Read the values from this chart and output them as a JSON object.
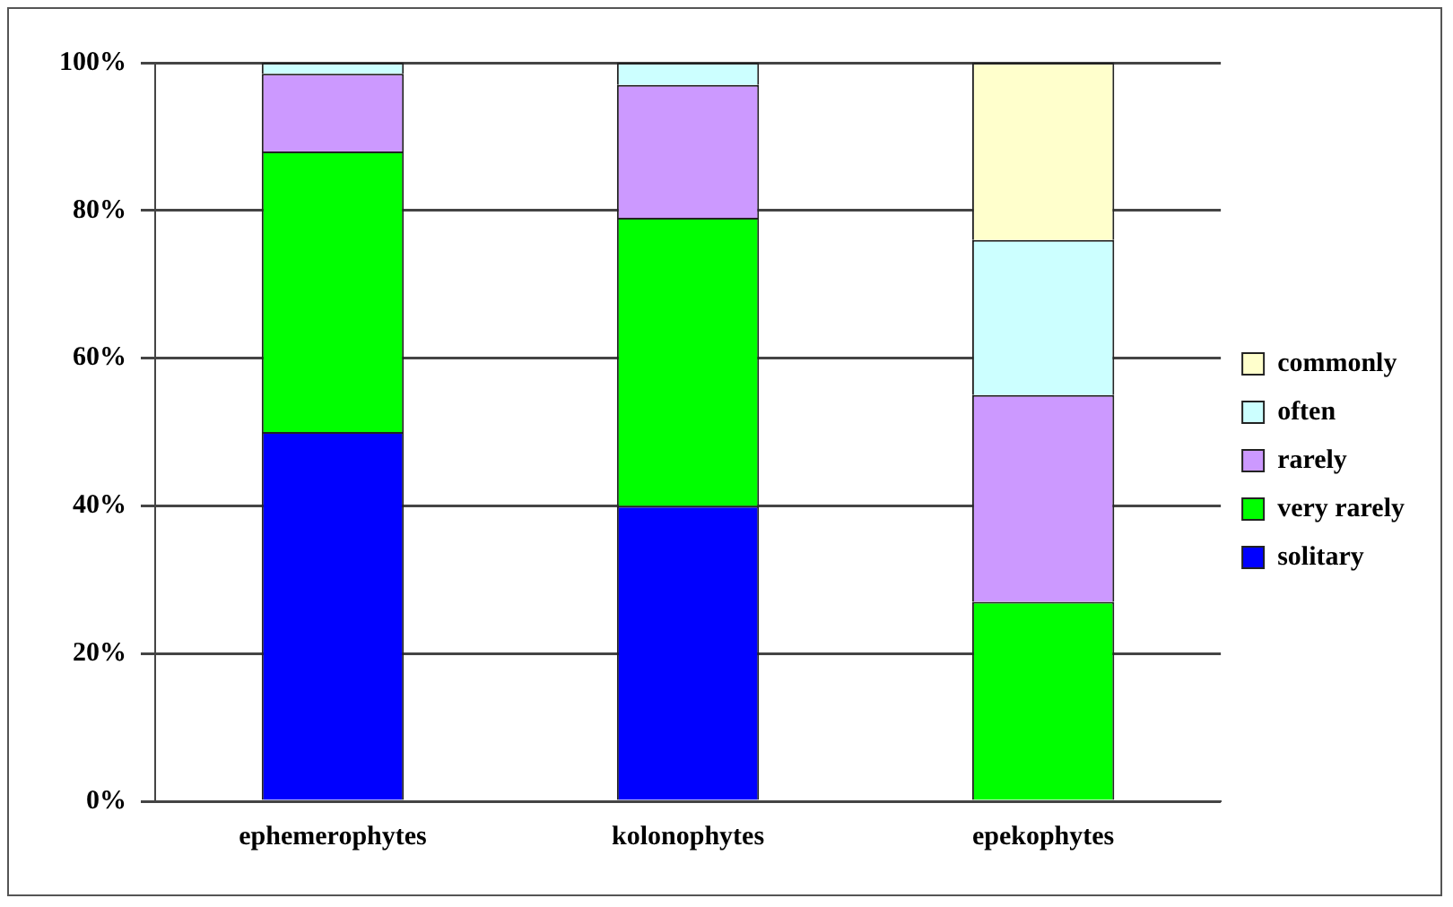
{
  "chart_data": {
    "type": "bar",
    "stacked": true,
    "categories": [
      "ephemerophytes",
      "kolonophytes",
      "epekophytes"
    ],
    "series": [
      {
        "name": "solitary",
        "color": "#0000ff",
        "values": [
          50,
          40,
          0
        ]
      },
      {
        "name": "very rarely",
        "color": "#00ff00",
        "values": [
          38,
          39,
          27
        ]
      },
      {
        "name": "rarely",
        "color": "#cc99ff",
        "values": [
          10.5,
          18,
          28
        ]
      },
      {
        "name": "often",
        "color": "#ccffff",
        "values": [
          1.5,
          3,
          21
        ]
      },
      {
        "name": "commonly",
        "color": "#ffffcc",
        "values": [
          0,
          0,
          24
        ]
      }
    ],
    "ylim": [
      0,
      100
    ],
    "yticks": [
      {
        "value": 0,
        "label": "0%"
      },
      {
        "value": 20,
        "label": "20%"
      },
      {
        "value": 40,
        "label": "40%"
      },
      {
        "value": 60,
        "label": "60%"
      },
      {
        "value": 80,
        "label": "80%"
      },
      {
        "value": 100,
        "label": "100%"
      }
    ],
    "grid": "y",
    "legend": "right"
  }
}
